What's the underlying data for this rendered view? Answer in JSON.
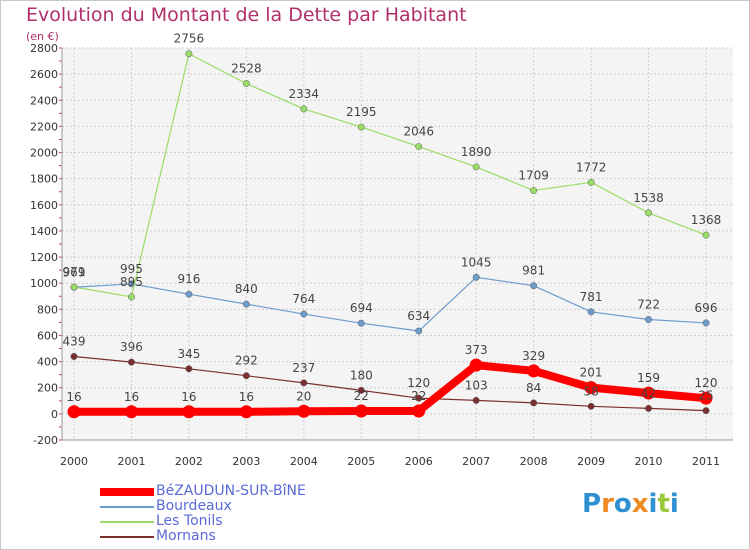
{
  "title": "Evolution du Montant de la Dette par Habitant",
  "subtitle": "(en €)",
  "logo": "Proxiti",
  "chart_data": {
    "type": "line",
    "title": "Evolution du Montant de la Dette par Habitant",
    "ylabel": "(en €)",
    "xlabel": "",
    "ylim": [
      -200,
      2800
    ],
    "yticks": [
      -200,
      0,
      200,
      400,
      600,
      800,
      1000,
      1200,
      1400,
      1600,
      1800,
      2000,
      2200,
      2400,
      2600,
      2800
    ],
    "categories": [
      "2000",
      "2001",
      "2002",
      "2003",
      "2004",
      "2005",
      "2006",
      "2007",
      "2008",
      "2009",
      "2010",
      "2011"
    ],
    "grid": true,
    "legend_position": "bottom-left",
    "series": [
      {
        "name": "BéZAUDUN-SUR-BîNE",
        "color": "#ff0000",
        "values": [
          16,
          16,
          16,
          16,
          20,
          22,
          22,
          373,
          329,
          201,
          159,
          120
        ]
      },
      {
        "name": "Bourdeaux",
        "color": "#6e9ccc",
        "values": [
          969,
          995,
          916,
          840,
          764,
          694,
          634,
          1045,
          981,
          781,
          722,
          696
        ]
      },
      {
        "name": "Les Tonils",
        "color": "#99dd66",
        "values": [
          971,
          895,
          2756,
          2528,
          2334,
          2195,
          2046,
          1890,
          1709,
          1772,
          1538,
          1368
        ]
      },
      {
        "name": "Mornans",
        "color": "#7a2e2e",
        "values": [
          439,
          396,
          345,
          292,
          237,
          180,
          120,
          103,
          84,
          58,
          42,
          25
        ]
      }
    ]
  }
}
